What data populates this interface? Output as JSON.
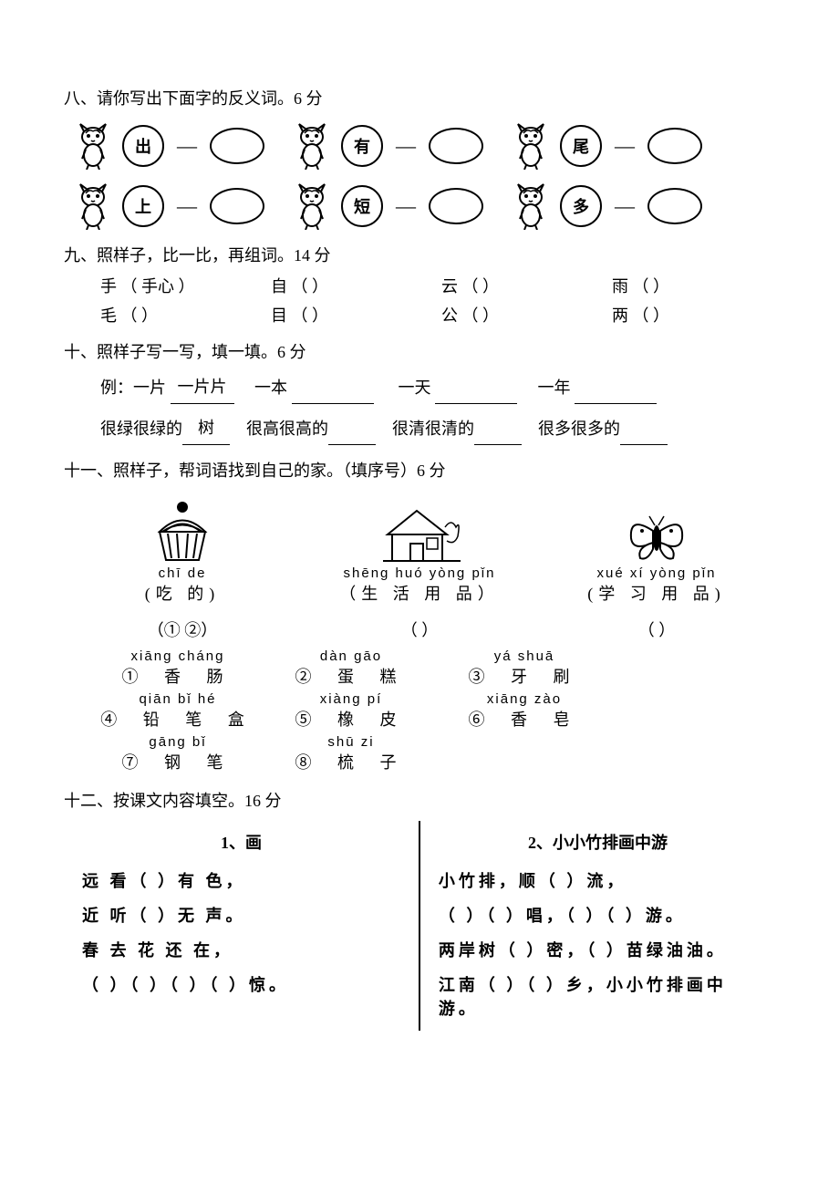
{
  "q8": {
    "title": "八、请你写出下面字的反义词。6 分",
    "row1": [
      "出",
      "有",
      "尾"
    ],
    "row2": [
      "上",
      "短",
      "多"
    ]
  },
  "q9": {
    "title": "九、照样子，比一比，再组词。14 分",
    "row1": [
      {
        "ch": "手",
        "ex": "（ 手心 ）"
      },
      {
        "ch": "自",
        "ex": "（        ）"
      },
      {
        "ch": "云",
        "ex": "（        ）"
      },
      {
        "ch": "雨",
        "ex": "（      ）"
      }
    ],
    "row2": [
      {
        "ch": "毛",
        "ex": "（       ）"
      },
      {
        "ch": "目",
        "ex": "（        ）"
      },
      {
        "ch": "公",
        "ex": "（        ）"
      },
      {
        "ch": "两",
        "ex": "（      ）"
      }
    ]
  },
  "q10": {
    "title": "十、照样子写一写，填一填。6 分",
    "line1_prefix": "例：一片",
    "line1_ex": "一片片",
    "line1_items": [
      "一本",
      "一天",
      "一年"
    ],
    "line2_prefix": "很绿很绿的",
    "line2_ex": "树",
    "line2_items": [
      "很高很高的",
      "很清很清的",
      "很多很多的"
    ]
  },
  "q11": {
    "title": "十一、照样子，帮词语找到自己的家。（填序号）6 分",
    "categories": [
      {
        "pinyin": "chī  de",
        "hanzi": "(吃 的)",
        "ans": "（① ②）"
      },
      {
        "pinyin": "shēng huó yòng pǐn",
        "hanzi": "（生 活 用 品）",
        "ans": "（              ）"
      },
      {
        "pinyin": "xué xí yòng pǐn",
        "hanzi": "(学 习 用 品)",
        "ans": "（              ）"
      }
    ],
    "words": [
      {
        "n": "①",
        "pinyin": "xiāng  cháng",
        "hanzi": "香   肠"
      },
      {
        "n": "②",
        "pinyin": "dàn   gāo",
        "hanzi": "蛋   糕"
      },
      {
        "n": "③",
        "pinyin": "yá   shuā",
        "hanzi": "牙   刷"
      },
      {
        "n": "④",
        "pinyin": "qiān  bǐ  hé",
        "hanzi": "铅  笔  盒"
      },
      {
        "n": "⑤",
        "pinyin": "xiàng   pí",
        "hanzi": "橡   皮"
      },
      {
        "n": "⑥",
        "pinyin": "xiāng   zào",
        "hanzi": "香   皂"
      },
      {
        "n": "⑦",
        "pinyin": "gāng   bǐ",
        "hanzi": "钢   笔"
      },
      {
        "n": "⑧",
        "pinyin": "shū   zi",
        "hanzi": "梳   子"
      }
    ]
  },
  "q12": {
    "title": "十二、按课文内容填空。16 分",
    "left": {
      "title": "1、画",
      "lines": [
        "远 看（     ）有 色，",
        "近 听（     ）无 声。",
        "春 去 花 还 在，",
        "（   ）（   ）（   ）（   ）惊。"
      ]
    },
    "right": {
      "title": "2、小小竹排画中游",
      "lines": [
        "小竹排，顺（   ）流，",
        "（  ）（  ）唱，（  ）（  ）游。",
        "两岸树（   ）密，（   ）苗绿油油。",
        "江南（   ）（   ）乡，小小竹排画中游。"
      ]
    }
  }
}
